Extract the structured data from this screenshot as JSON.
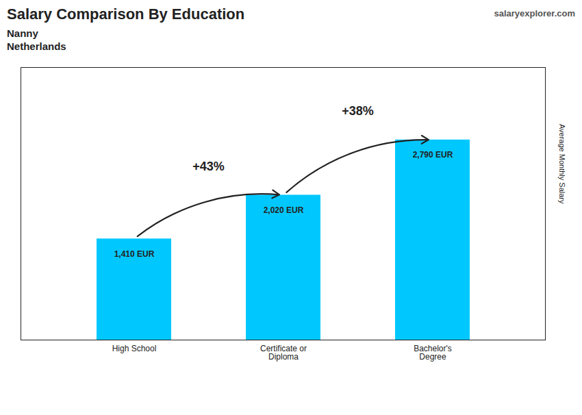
{
  "chart_data": {
    "type": "bar",
    "title": "Salary Comparison By Education",
    "subtitle": [
      "Nanny",
      "Netherlands"
    ],
    "ylabel": "Average Monthly Salary",
    "categories": [
      "High School",
      "Certificate or\nDiploma",
      "Bachelor's\nDegree"
    ],
    "values": [
      1410,
      2020,
      2790
    ],
    "value_labels": [
      "1,410 EUR",
      "2,020 EUR",
      "2,790 EUR"
    ],
    "data_labels": true,
    "color": "#00c8ff",
    "ylim": [
      0,
      3800
    ],
    "tick_labels": "x",
    "grid": false,
    "annotations": [
      {
        "text": "+43%",
        "from": "High School",
        "to": "Certificate or\nDiploma"
      },
      {
        "text": "+38%",
        "from": "Certificate or\nDiploma",
        "to": "Bachelor's\nDegree"
      },
      {
        "text": "salaryexplorer.com"
      }
    ]
  }
}
